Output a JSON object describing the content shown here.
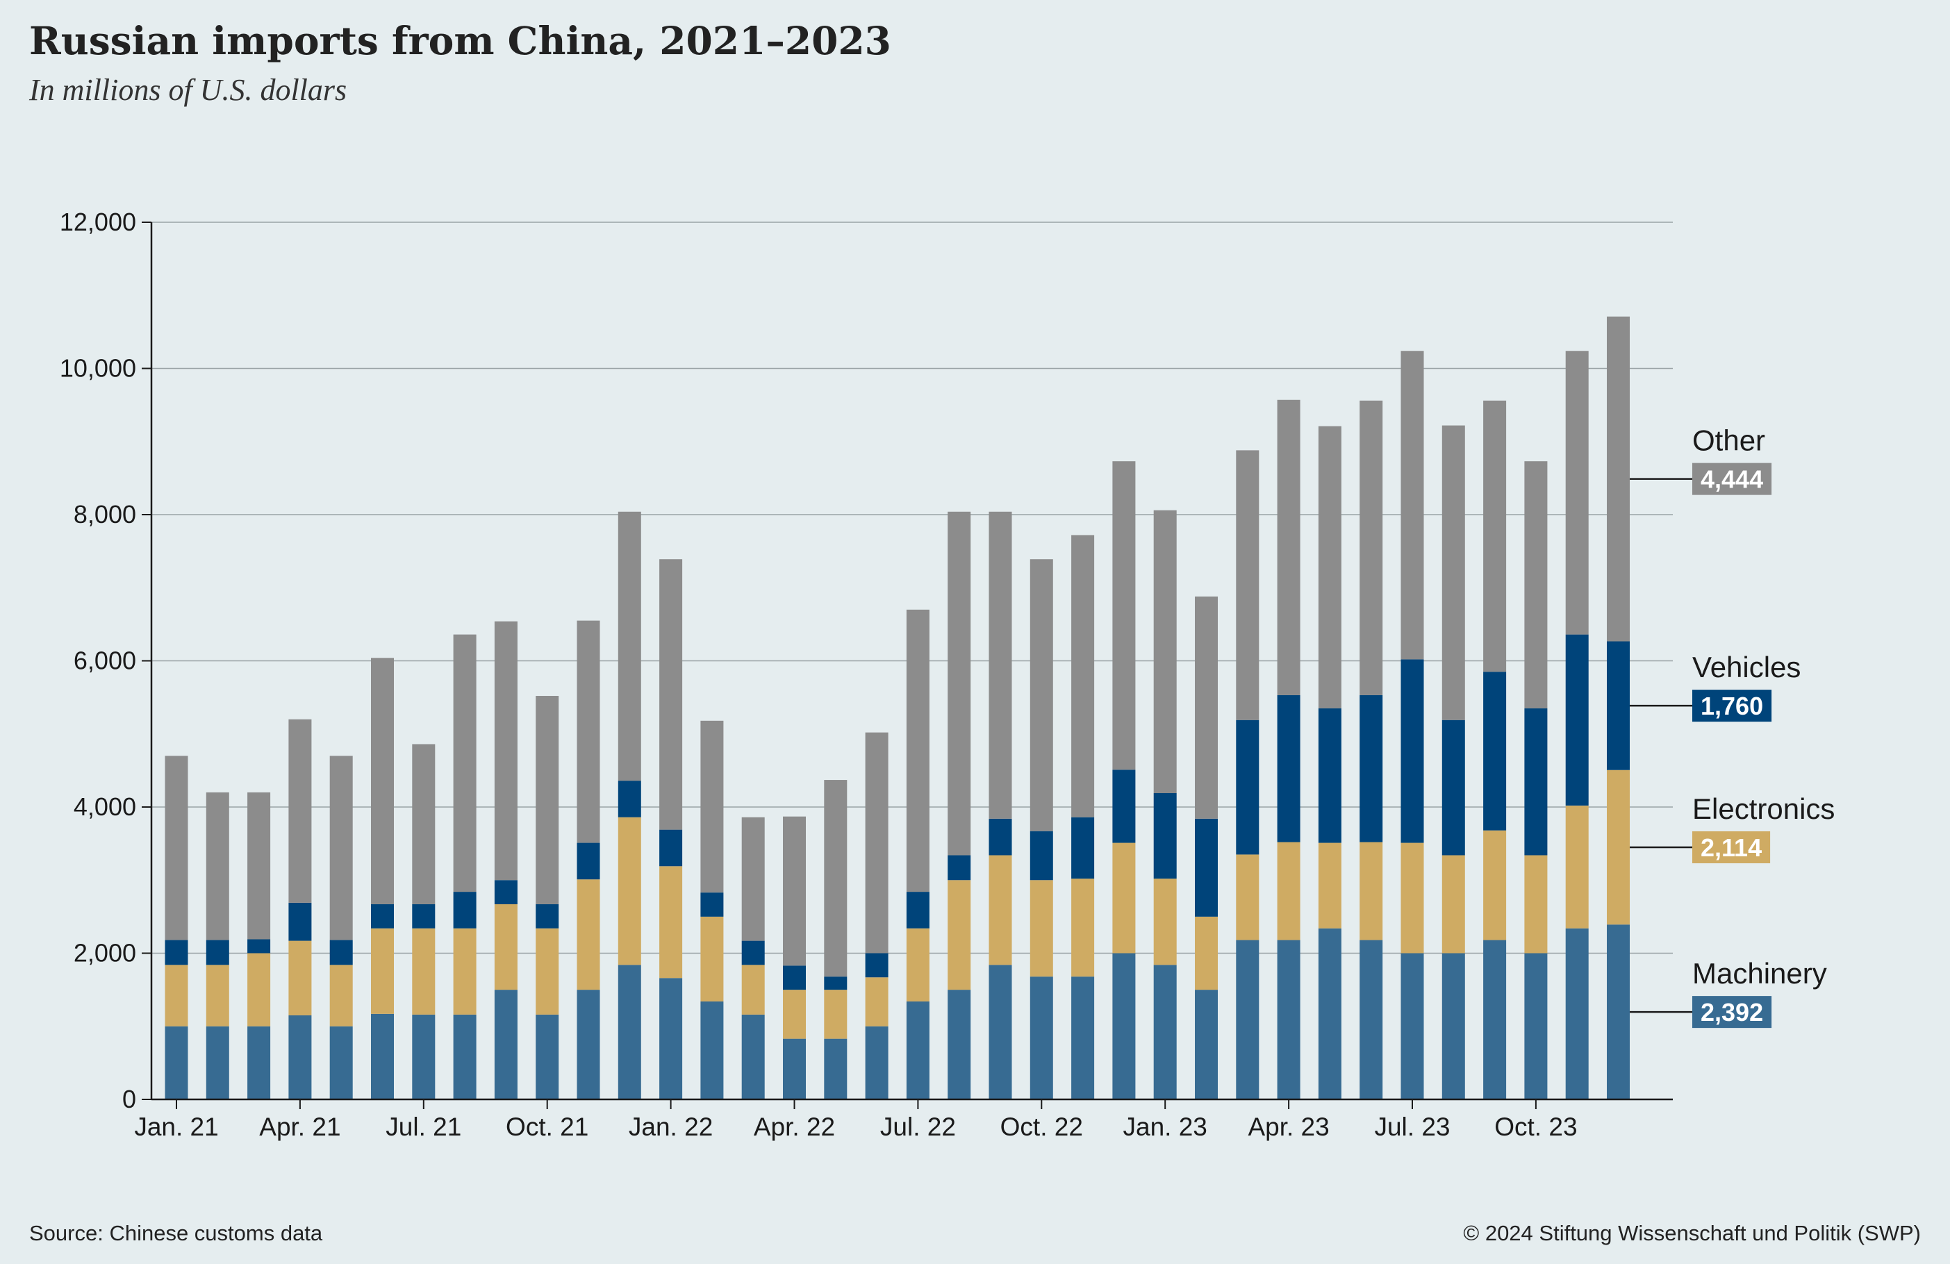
{
  "header": {
    "title": "Russian imports from China, 2021–2023",
    "subtitle": "In millions of U.S. dollars"
  },
  "footer": {
    "source": "Source: Chinese customs data",
    "copyright": "© 2024 Stiftung Wissenschaft und Politik (SWP)"
  },
  "chart_data": {
    "type": "bar",
    "stacked": true,
    "title": "Russian imports from China, 2021–2023",
    "subtitle": "In millions of U.S. dollars",
    "ylim": [
      0,
      12000
    ],
    "yticks": [
      0,
      2000,
      4000,
      6000,
      8000,
      10000,
      12000
    ],
    "ytick_labels": [
      "0",
      "2,000",
      "4,000",
      "6,000",
      "8,000",
      "10,000",
      "12,000"
    ],
    "grid": true,
    "x_tick_labels": [
      {
        "index": 0,
        "label": "Jan. 21"
      },
      {
        "index": 3,
        "label": "Apr. 21"
      },
      {
        "index": 6,
        "label": "Jul. 21"
      },
      {
        "index": 9,
        "label": "Oct. 21"
      },
      {
        "index": 12,
        "label": "Jan. 22"
      },
      {
        "index": 15,
        "label": "Apr. 22"
      },
      {
        "index": 18,
        "label": "Jul. 22"
      },
      {
        "index": 21,
        "label": "Oct. 22"
      },
      {
        "index": 24,
        "label": "Jan. 23"
      },
      {
        "index": 27,
        "label": "Apr. 23"
      },
      {
        "index": 30,
        "label": "Jul. 23"
      },
      {
        "index": 33,
        "label": "Oct. 23"
      }
    ],
    "categories": [
      "2021-01",
      "2021-02",
      "2021-03",
      "2021-04",
      "2021-05",
      "2021-06",
      "2021-07",
      "2021-08",
      "2021-09",
      "2021-10",
      "2021-11",
      "2021-12",
      "2022-01",
      "2022-02",
      "2022-03",
      "2022-04",
      "2022-05",
      "2022-06",
      "2022-07",
      "2022-08",
      "2022-09",
      "2022-10",
      "2022-11",
      "2022-12",
      "2023-01",
      "2023-02",
      "2023-03",
      "2023-04",
      "2023-05",
      "2023-06",
      "2023-07",
      "2023-08",
      "2023-09",
      "2023-10",
      "2023-11",
      "2023-12"
    ],
    "series": [
      {
        "name": "Machinery",
        "color": "#376b92",
        "values": [
          1000,
          1000,
          1000,
          1150,
          1000,
          1170,
          1160,
          1160,
          1500,
          1160,
          1500,
          1840,
          1660,
          1340,
          1160,
          830,
          830,
          1000,
          1340,
          1500,
          1840,
          1680,
          1680,
          2000,
          1840,
          1500,
          2180,
          2180,
          2340,
          2180,
          2000,
          2000,
          2180,
          2000,
          2340,
          2392
        ]
      },
      {
        "name": "Electronics",
        "color": "#cfab63",
        "values": [
          840,
          840,
          1000,
          1020,
          840,
          1170,
          1180,
          1180,
          1170,
          1180,
          1510,
          2020,
          1530,
          1160,
          680,
          670,
          670,
          670,
          1000,
          1500,
          1500,
          1320,
          1340,
          1510,
          1180,
          1000,
          1170,
          1340,
          1170,
          1340,
          1510,
          1340,
          1500,
          1340,
          1680,
          2114
        ]
      },
      {
        "name": "Vehicles",
        "color": "#00447a",
        "values": [
          340,
          340,
          190,
          520,
          340,
          330,
          330,
          500,
          330,
          330,
          500,
          500,
          500,
          330,
          330,
          330,
          180,
          330,
          500,
          340,
          500,
          670,
          840,
          1000,
          1170,
          1340,
          1840,
          2010,
          1840,
          2010,
          2510,
          1850,
          2170,
          2010,
          2340,
          1760
        ]
      },
      {
        "name": "Other",
        "color": "#8c8c8c",
        "values": [
          2520,
          2020,
          2010,
          2510,
          2520,
          3370,
          2190,
          3520,
          3540,
          2850,
          3040,
          3680,
          3700,
          2350,
          1690,
          2040,
          2690,
          3020,
          3860,
          4700,
          4200,
          3720,
          3860,
          4220,
          3870,
          3040,
          3690,
          4040,
          3860,
          4030,
          4220,
          4030,
          3710,
          3380,
          3880,
          4444
        ]
      }
    ],
    "legend": {
      "placement": "right",
      "entries": [
        {
          "name": "Other",
          "value": "4,444",
          "box_color": "#8c8c8c"
        },
        {
          "name": "Vehicles",
          "value": "1,760",
          "box_color": "#00447a"
        },
        {
          "name": "Electronics",
          "value": "2,114",
          "box_color": "#cfab63"
        },
        {
          "name": "Machinery",
          "value": "2,392",
          "box_color": "#376b92"
        }
      ]
    }
  }
}
